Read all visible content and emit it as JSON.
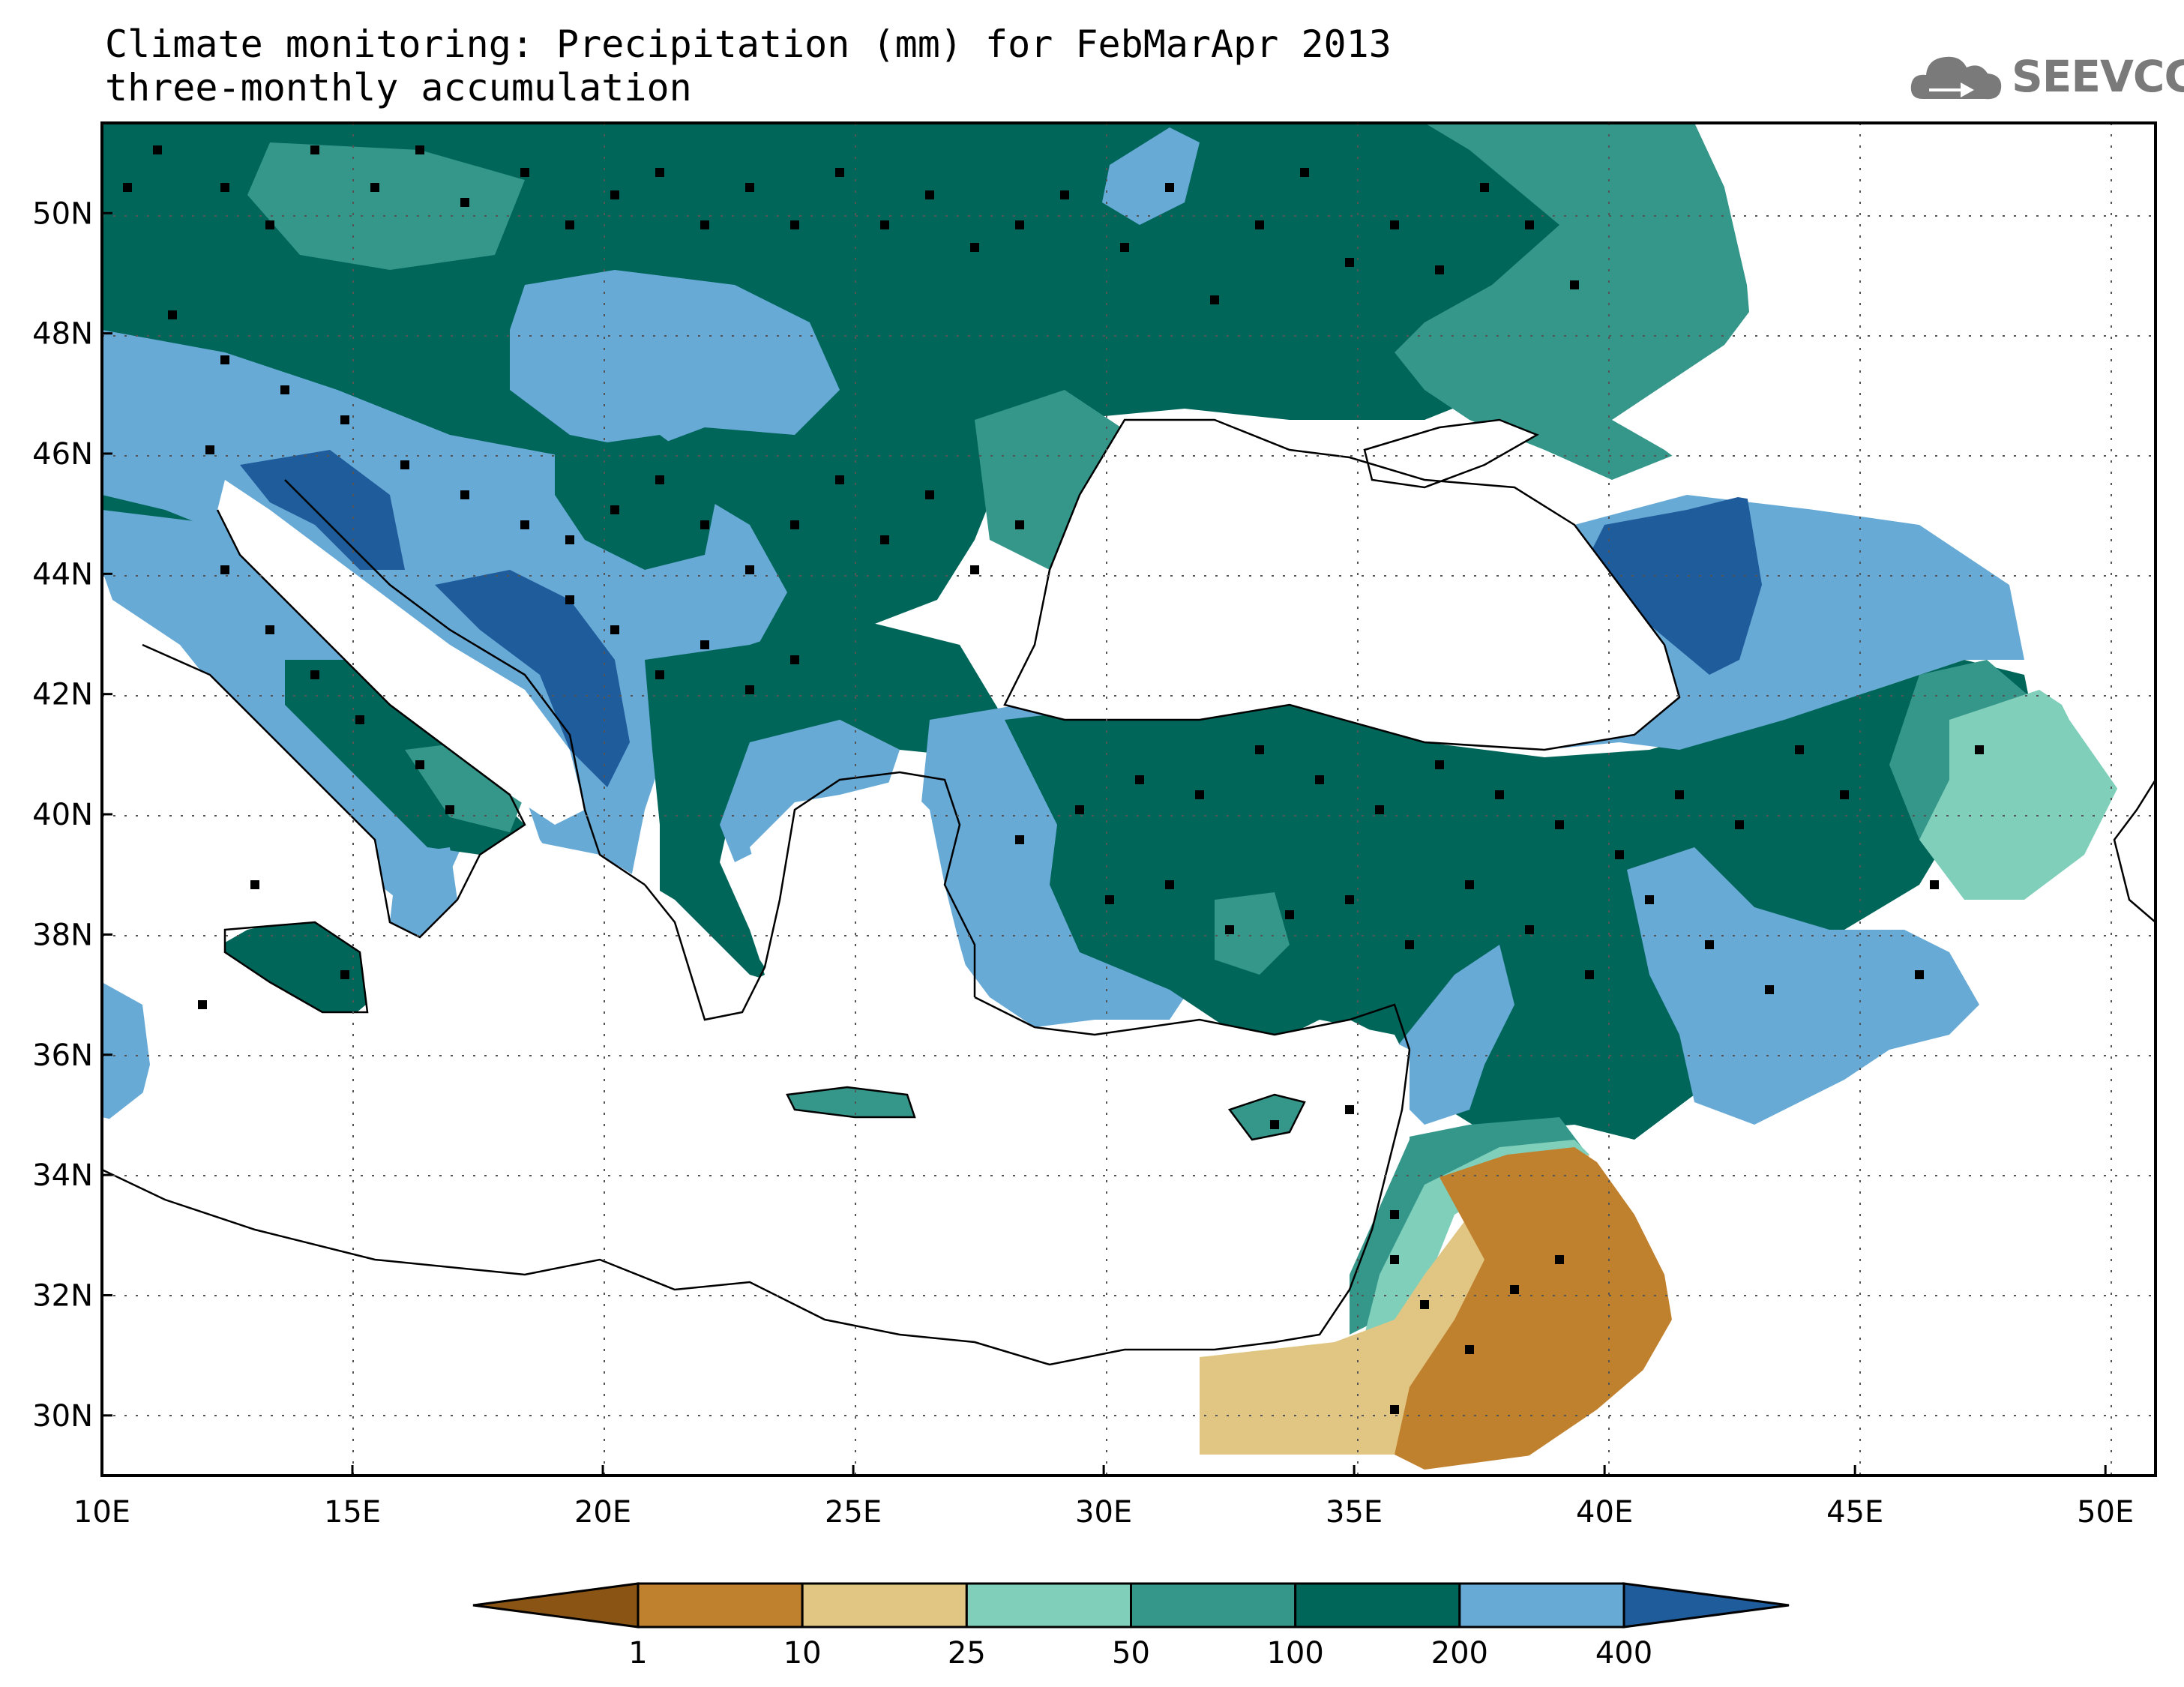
{
  "title": {
    "line1": "Climate monitoring: Precipitation (mm) for FebMarApr 2013",
    "line2": "three-monthly accumulation"
  },
  "logo": {
    "text": "SEEVCCC",
    "icon": "cloud-arrow-icon"
  },
  "axes": {
    "x_ticks": [
      "10E",
      "15E",
      "20E",
      "25E",
      "30E",
      "35E",
      "40E",
      "45E",
      "50E"
    ],
    "y_ticks": [
      "30N",
      "32N",
      "34N",
      "36N",
      "38N",
      "40N",
      "42N",
      "44N",
      "46N",
      "48N",
      "50N"
    ],
    "lon_range": [
      10,
      51
    ],
    "lat_range": [
      29,
      51.5
    ]
  },
  "legend": {
    "thresholds": [
      "1",
      "10",
      "25",
      "50",
      "100",
      "200",
      "400"
    ],
    "colors": [
      "#8a5414",
      "#c0812f",
      "#e1c683",
      "#80cfba",
      "#35968a",
      "#00665a",
      "#68aad6",
      "#1f5c9c"
    ]
  },
  "map": {
    "variable": "Precipitation (mm)",
    "period": "FebMarApr 2013",
    "colors": {
      "c10_25": "#c0812f",
      "c25_50": "#e1c683",
      "c50_100": "#80cfba",
      "c100_200": "#35968a",
      "c200_400": "#00665a",
      "c400plus_light": "#68aad6",
      "c400plus_dark": "#1f5c9c",
      "sea": "#ffffff",
      "station": "#000000"
    }
  }
}
